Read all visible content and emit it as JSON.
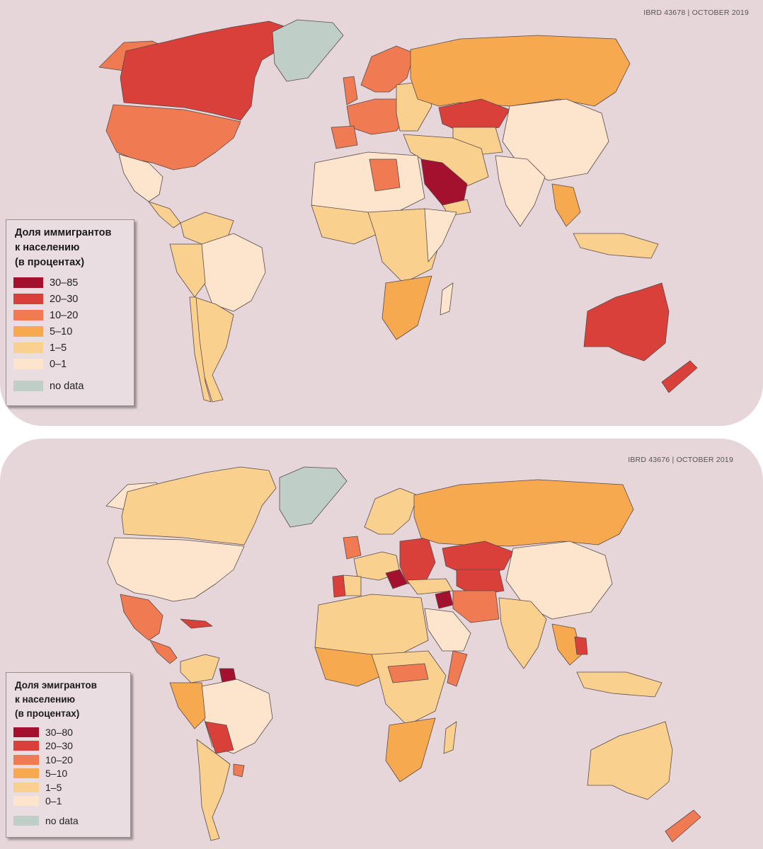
{
  "maps": [
    {
      "reference": "IBRD 43678 | OCTOBER 2019",
      "legend": {
        "title_lines": [
          "Доля иммигрантов",
          "к населению",
          "(в процентах)"
        ],
        "items": [
          {
            "label": "30–85",
            "color": "#a3112e"
          },
          {
            "label": "20–30",
            "color": "#d9403a"
          },
          {
            "label": "10–20",
            "color": "#f07a52"
          },
          {
            "label": "5–10",
            "color": "#f6a94f"
          },
          {
            "label": "1–5",
            "color": "#fad08e"
          },
          {
            "label": "0–1",
            "color": "#fde4cc"
          }
        ],
        "no_data": {
          "label": "no data",
          "color": "#bfcfc8"
        }
      }
    },
    {
      "reference": "IBRD 43676 | OCTOBER 2019",
      "legend": {
        "title_lines": [
          "Доля эмигрантов",
          "к населению",
          "(в процентах)"
        ],
        "items": [
          {
            "label": "30–80",
            "color": "#a3112e"
          },
          {
            "label": "20–30",
            "color": "#d9403a"
          },
          {
            "label": "10–20",
            "color": "#f07a52"
          },
          {
            "label": "5–10",
            "color": "#f6a94f"
          },
          {
            "label": "1–5",
            "color": "#fad08e"
          },
          {
            "label": "0–1",
            "color": "#fde4cc"
          }
        ],
        "no_data": {
          "label": "no data",
          "color": "#bfcfc8"
        }
      }
    }
  ]
}
